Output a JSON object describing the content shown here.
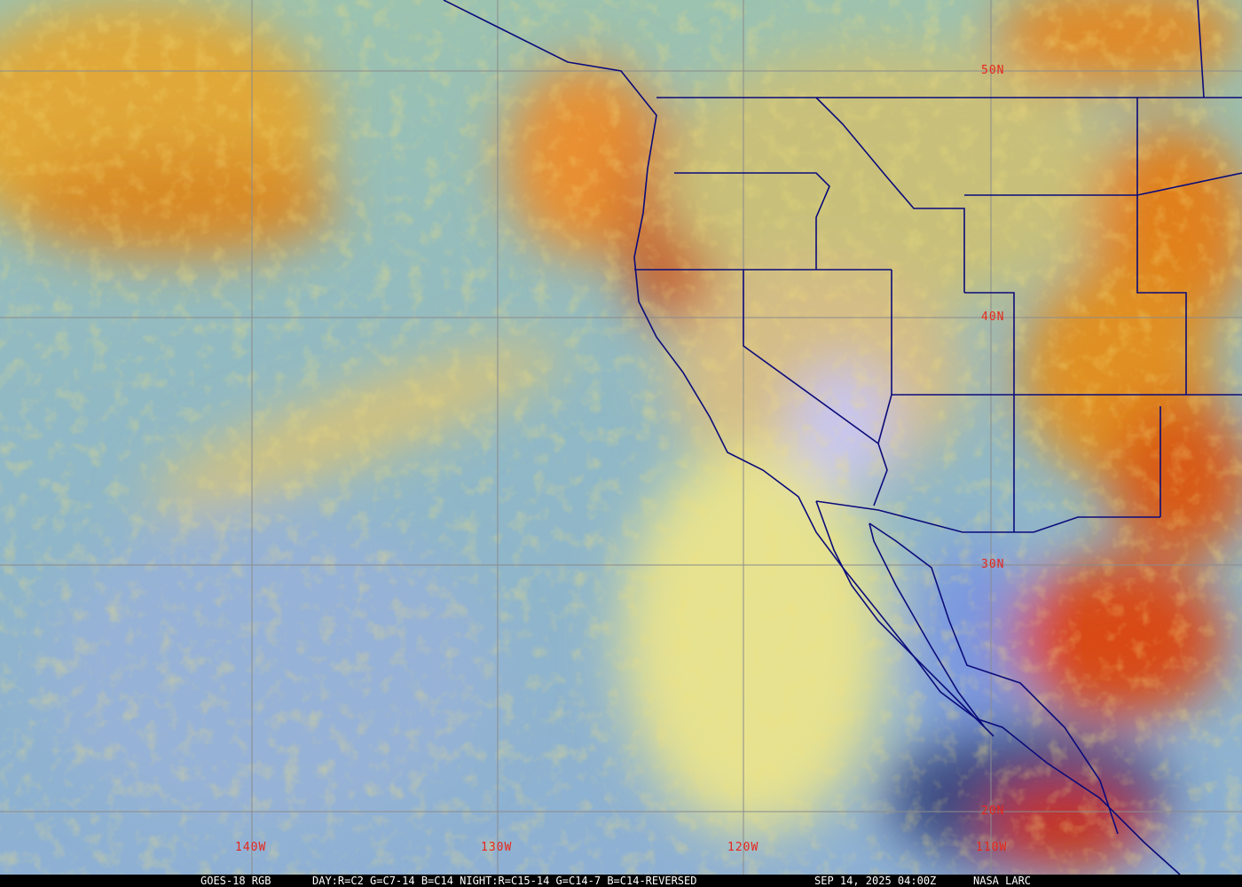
{
  "image": {
    "caption": {
      "product": "GOES-18 RGB",
      "recipe": "DAY:R=C2 G=C7-14 B=C14 NIGHT:R=C15-14 G=C14-7 B=C14-REVERSED",
      "timestamp": "SEP 14, 2025 04:00Z",
      "credit": "NASA LARC"
    },
    "latitude_labels": [
      "50N",
      "40N",
      "30N",
      "20N"
    ],
    "longitude_labels": [
      "140W",
      "130W",
      "120W",
      "110W"
    ],
    "colors": {
      "grid": "#8c8c8c",
      "labels": "#e8261a",
      "boundaries": "#0a0a7a",
      "ocean_clear": "#8fb4c8",
      "cloud_warm": "#e0a030",
      "cloud_cold": "#c82a18"
    }
  }
}
